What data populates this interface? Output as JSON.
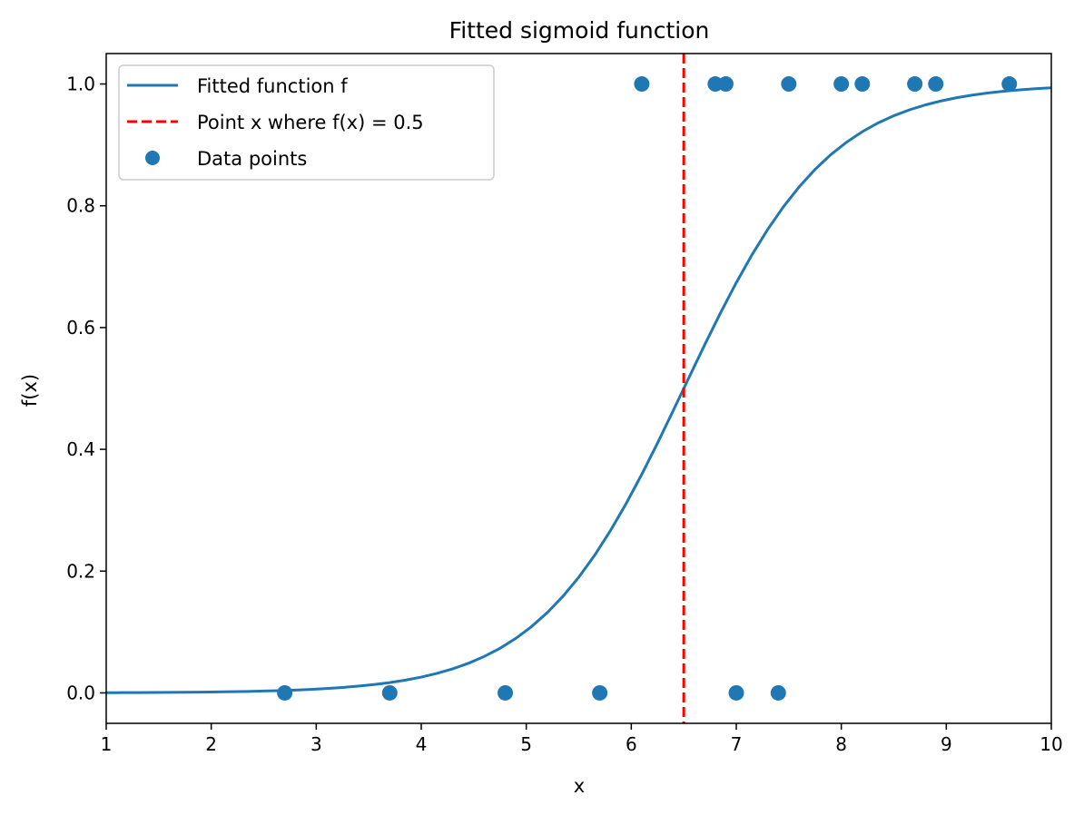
{
  "chart_data": {
    "type": "scatter",
    "title": "Fitted sigmoid function",
    "xlabel": "x",
    "ylabel": "f(x)",
    "xlim": [
      1,
      10
    ],
    "ylim": [
      -0.05,
      1.05
    ],
    "xticks": [
      1,
      2,
      3,
      4,
      5,
      6,
      7,
      8,
      9,
      10
    ],
    "yticks": [
      "0.0",
      "0.2",
      "0.4",
      "0.6",
      "0.8",
      "1.0"
    ],
    "grid": false,
    "legend_position": "top-left",
    "series": [
      {
        "name": "Fitted function f",
        "kind": "line",
        "color": "#1f77b4",
        "function": "sigmoid",
        "midpoint": 6.5,
        "steepness": 1.45,
        "x_range": [
          1,
          10
        ]
      },
      {
        "name": "Point x where f(x) = 0.5",
        "kind": "vline",
        "color": "#ff0000",
        "x": 6.5
      },
      {
        "name": "Data points",
        "kind": "scatter",
        "color": "#1f77b4",
        "points": [
          {
            "x": 2.7,
            "y": 0
          },
          {
            "x": 3.7,
            "y": 0
          },
          {
            "x": 4.8,
            "y": 0
          },
          {
            "x": 5.7,
            "y": 0
          },
          {
            "x": 6.1,
            "y": 1
          },
          {
            "x": 6.8,
            "y": 1
          },
          {
            "x": 6.9,
            "y": 1
          },
          {
            "x": 7.0,
            "y": 0
          },
          {
            "x": 7.4,
            "y": 0
          },
          {
            "x": 7.5,
            "y": 1
          },
          {
            "x": 8.0,
            "y": 1
          },
          {
            "x": 8.2,
            "y": 1
          },
          {
            "x": 8.7,
            "y": 1
          },
          {
            "x": 8.9,
            "y": 1
          },
          {
            "x": 9.6,
            "y": 1
          }
        ]
      }
    ]
  }
}
